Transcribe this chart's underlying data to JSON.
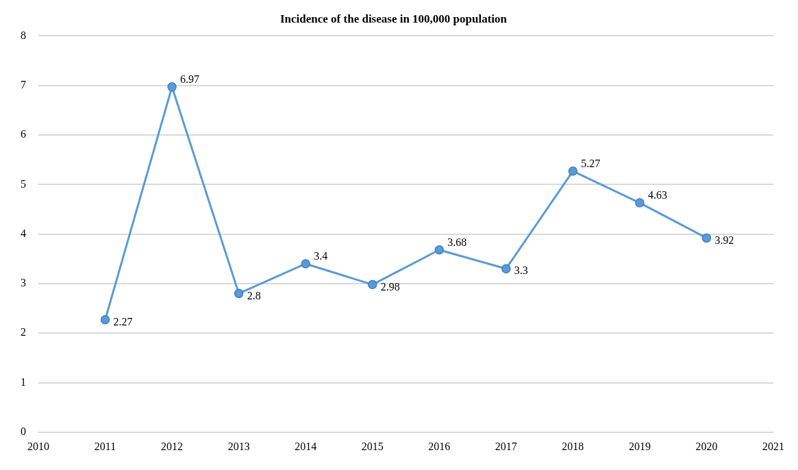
{
  "chart_data": {
    "type": "line",
    "title": "Incidence of the disease in 100,000 population",
    "x": [
      2011,
      2012,
      2013,
      2014,
      2015,
      2016,
      2017,
      2018,
      2019,
      2020
    ],
    "series": [
      {
        "color": "#5b9bd5",
        "values": [
          2.27,
          6.97,
          2.8,
          3.4,
          2.98,
          3.68,
          3.3,
          5.27,
          4.63,
          3.92
        ]
      }
    ],
    "xlim": [
      2010,
      2021
    ],
    "xticks": [
      2010,
      2011,
      2012,
      2013,
      2014,
      2015,
      2016,
      2017,
      2018,
      2019,
      2020,
      2021
    ],
    "ylim": [
      0,
      8
    ],
    "yticks": [
      0,
      1,
      2,
      3,
      4,
      5,
      6,
      7,
      8
    ],
    "grid": "y",
    "marker": "circle",
    "line_style": "solid",
    "data_labels": true,
    "legend": false
  }
}
